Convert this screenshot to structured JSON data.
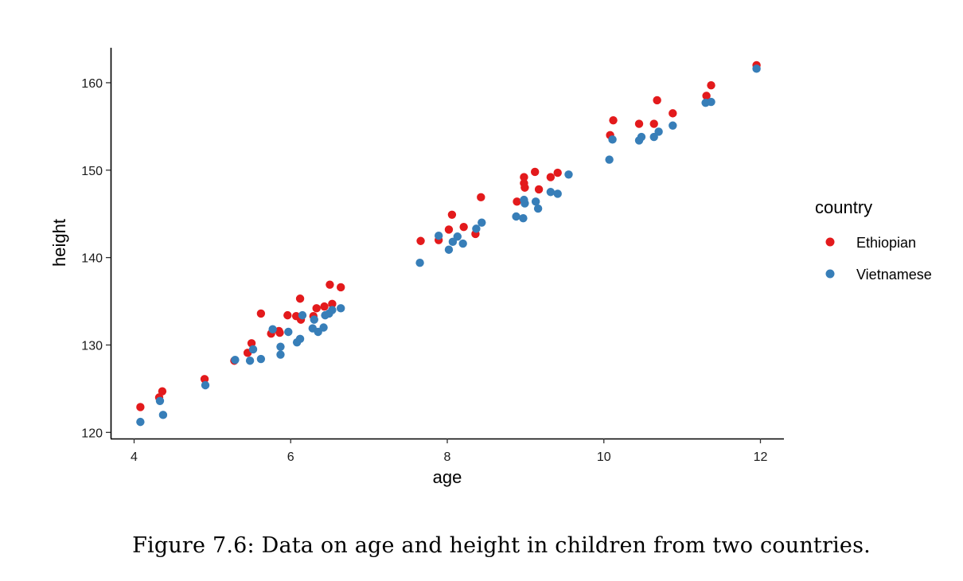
{
  "caption": "Figure 7.6: Data on age and height in children from two countries.",
  "chart_data": {
    "type": "scatter",
    "xlabel": "age",
    "ylabel": "height",
    "xlim": [
      3.7,
      12.3
    ],
    "ylim": [
      119.3,
      164
    ],
    "xticks": [
      4,
      6,
      8,
      10,
      12
    ],
    "yticks": [
      120,
      130,
      140,
      150,
      160
    ],
    "grid": false,
    "legend": {
      "title": "country",
      "position": "right"
    },
    "series": [
      {
        "name": "Ethiopian",
        "color": "#E31A1C",
        "points": [
          [
            4.08,
            122.9
          ],
          [
            4.32,
            124.0
          ],
          [
            4.36,
            124.7
          ],
          [
            4.9,
            126.1
          ],
          [
            5.28,
            128.2
          ],
          [
            5.45,
            129.1
          ],
          [
            5.5,
            130.2
          ],
          [
            5.62,
            133.6
          ],
          [
            5.75,
            131.3
          ],
          [
            5.85,
            131.6
          ],
          [
            5.86,
            131.4
          ],
          [
            5.96,
            133.4
          ],
          [
            6.07,
            133.3
          ],
          [
            6.12,
            135.3
          ],
          [
            6.13,
            132.9
          ],
          [
            6.29,
            133.3
          ],
          [
            6.33,
            134.2
          ],
          [
            6.43,
            134.4
          ],
          [
            6.5,
            136.9
          ],
          [
            6.53,
            134.7
          ],
          [
            6.64,
            136.6
          ],
          [
            7.66,
            141.9
          ],
          [
            7.89,
            142.0
          ],
          [
            8.02,
            143.2
          ],
          [
            8.06,
            144.9
          ],
          [
            8.21,
            143.5
          ],
          [
            8.36,
            142.7
          ],
          [
            8.43,
            146.9
          ],
          [
            8.89,
            146.4
          ],
          [
            8.98,
            149.2
          ],
          [
            8.98,
            148.5
          ],
          [
            8.99,
            148.0
          ],
          [
            9.12,
            149.8
          ],
          [
            9.17,
            147.8
          ],
          [
            9.32,
            149.2
          ],
          [
            9.41,
            149.7
          ],
          [
            10.08,
            154.0
          ],
          [
            10.12,
            155.7
          ],
          [
            10.45,
            155.3
          ],
          [
            10.64,
            155.3
          ],
          [
            10.68,
            158.0
          ],
          [
            10.88,
            156.5
          ],
          [
            11.31,
            158.5
          ],
          [
            11.37,
            159.7
          ],
          [
            11.95,
            162.0
          ]
        ]
      },
      {
        "name": "Vietnamese",
        "color": "#377EB8",
        "points": [
          [
            4.08,
            121.2
          ],
          [
            4.33,
            123.6
          ],
          [
            4.37,
            122.0
          ],
          [
            4.91,
            125.4
          ],
          [
            5.29,
            128.3
          ],
          [
            5.48,
            128.2
          ],
          [
            5.52,
            129.5
          ],
          [
            5.62,
            128.4
          ],
          [
            5.77,
            131.8
          ],
          [
            5.87,
            129.8
          ],
          [
            5.87,
            128.9
          ],
          [
            5.97,
            131.5
          ],
          [
            6.08,
            130.3
          ],
          [
            6.12,
            130.7
          ],
          [
            6.15,
            133.4
          ],
          [
            6.28,
            131.9
          ],
          [
            6.3,
            132.9
          ],
          [
            6.35,
            131.5
          ],
          [
            6.42,
            132.0
          ],
          [
            6.44,
            133.4
          ],
          [
            6.49,
            133.6
          ],
          [
            6.53,
            134.0
          ],
          [
            6.64,
            134.2
          ],
          [
            7.65,
            139.4
          ],
          [
            7.89,
            142.5
          ],
          [
            8.02,
            140.9
          ],
          [
            8.07,
            141.8
          ],
          [
            8.13,
            142.4
          ],
          [
            8.2,
            141.6
          ],
          [
            8.37,
            143.3
          ],
          [
            8.44,
            144.0
          ],
          [
            8.88,
            144.7
          ],
          [
            8.97,
            144.5
          ],
          [
            8.98,
            146.6
          ],
          [
            8.99,
            146.2
          ],
          [
            9.13,
            146.4
          ],
          [
            9.16,
            145.6
          ],
          [
            9.32,
            147.5
          ],
          [
            9.41,
            147.3
          ],
          [
            9.55,
            149.5
          ],
          [
            10.07,
            151.2
          ],
          [
            10.11,
            153.5
          ],
          [
            10.45,
            153.4
          ],
          [
            10.48,
            153.8
          ],
          [
            10.64,
            153.8
          ],
          [
            10.7,
            154.4
          ],
          [
            10.88,
            155.1
          ],
          [
            11.3,
            157.7
          ],
          [
            11.37,
            157.8
          ],
          [
            11.95,
            161.6
          ]
        ]
      }
    ]
  }
}
